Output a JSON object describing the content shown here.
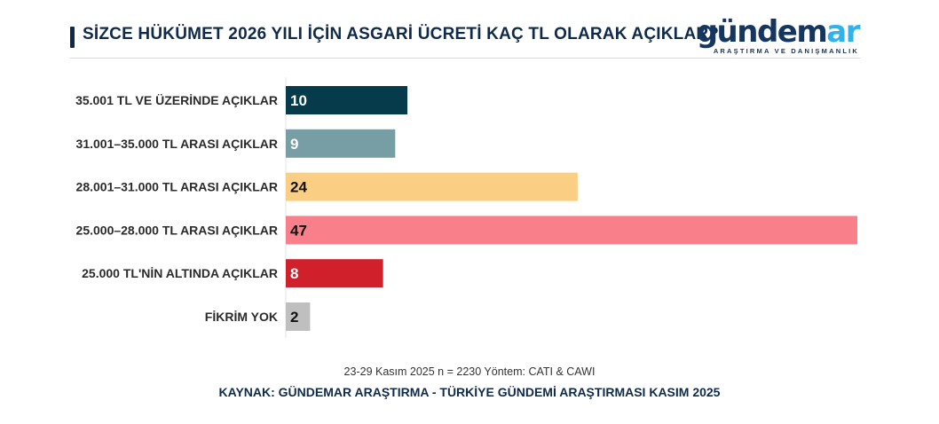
{
  "header": {
    "title": "SİZCE HÜKÜMET 2026 YILI İÇİN ASGARİ ÜCRETİ KAÇ TL OLARAK AÇIKLAR?"
  },
  "brand": {
    "word_main": "gündem",
    "word_accent": "ar",
    "tagline": "ARAŞTIRMA VE DANIŞMANLIK",
    "colors": {
      "main": "#14365f",
      "accent": "#2fb3ea"
    }
  },
  "chart_data": {
    "type": "bar",
    "orientation": "horizontal",
    "categories": [
      "35.001 TL VE ÜZERİNDE AÇIKLAR",
      "31.001–35.000 TL ARASI AÇIKLAR",
      "28.001–31.000 TL ARASI AÇIKLAR",
      "25.000–28.000 TL ARASI AÇIKLAR",
      "25.000 TL'NİN ALTINDA AÇIKLAR",
      "FİKRİM YOK"
    ],
    "values": [
      10,
      9,
      24,
      47,
      8,
      2
    ],
    "value_labels": [
      "10",
      "9",
      "24",
      "47",
      "8",
      "2"
    ],
    "colors": [
      "#053b4a",
      "#769ea4",
      "#facf84",
      "#f9808b",
      "#d0202c",
      "#bfbfbf"
    ],
    "label_colors": [
      "#ffffff",
      "#ffffff",
      "#111111",
      "#111111",
      "#ffffff",
      "#111111"
    ],
    "xlim": [
      0,
      47
    ],
    "grid": false,
    "legend": "none"
  },
  "footer": {
    "meta": "23-29 Kasım 2025 n = 2230 Yöntem: CATI & CAWI",
    "source": "KAYNAK: GÜNDEMAR ARAŞTIRMA - TÜRKİYE GÜNDEMİ ARAŞTIRMASI KASIM 2025"
  }
}
